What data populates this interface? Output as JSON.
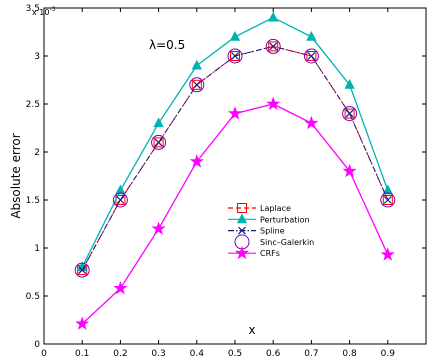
{
  "chart_data": {
    "type": "line",
    "xlabel": "x",
    "ylabel": "Absolute error",
    "y_multiplier_label": "x 10",
    "y_multiplier_exp": "-3",
    "annotation": "λ=0.5",
    "xlim": [
      0,
      1
    ],
    "ylim": [
      0,
      3.5
    ],
    "xticks": [
      "0",
      "0.1",
      "0.2",
      "0.3",
      "0.4",
      "0.5",
      "0.6",
      "0.7",
      "0.8",
      "0.9"
    ],
    "yticks": [
      "0",
      "0.5",
      "1",
      "1.5",
      "2",
      "2.5",
      "3",
      "3.5"
    ],
    "grid": false,
    "legend_position": "lower-center",
    "x": [
      0.1,
      0.2,
      0.3,
      0.4,
      0.5,
      0.6,
      0.7,
      0.8,
      0.9
    ],
    "series": [
      {
        "name": "Laplace",
        "color": "#ff0000",
        "marker": "square",
        "line": "dashed",
        "values": [
          0.77,
          1.5,
          2.1,
          2.7,
          3.0,
          3.1,
          3.0,
          2.4,
          1.5
        ]
      },
      {
        "name": "Perturbation",
        "color": "#00b3b3",
        "marker": "triangle",
        "line": "solid",
        "values": [
          0.8,
          1.6,
          2.3,
          2.9,
          3.2,
          3.4,
          3.2,
          2.7,
          1.6
        ]
      },
      {
        "name": "Spline",
        "color": "#1a1a80",
        "marker": "x",
        "line": "dashdot",
        "values": [
          0.77,
          1.5,
          2.1,
          2.7,
          3.0,
          3.1,
          3.0,
          2.4,
          1.5
        ]
      },
      {
        "name": "Sinc–Galerkin",
        "color": "#8000b3",
        "marker": "circle",
        "line": "none",
        "values": [
          0.77,
          1.5,
          2.1,
          2.7,
          3.0,
          3.1,
          3.0,
          2.4,
          1.5
        ]
      },
      {
        "name": "CRFs",
        "color": "#ff00ff",
        "marker": "star",
        "line": "solid",
        "values": [
          0.21,
          0.58,
          1.2,
          1.9,
          2.4,
          2.5,
          2.3,
          1.8,
          0.93
        ]
      }
    ]
  }
}
